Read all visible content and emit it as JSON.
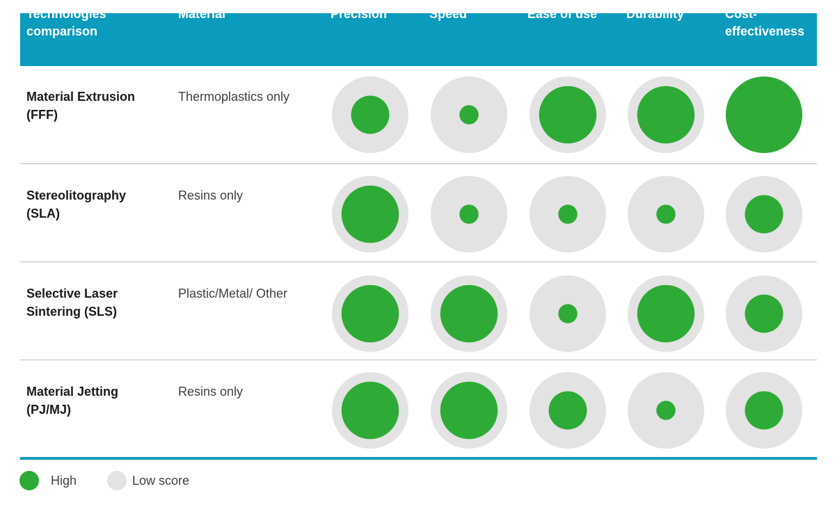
{
  "chart_data": {
    "type": "table",
    "title": "",
    "columns": [
      "Technologies\ncomparison",
      "Material",
      "Precision",
      "Speed",
      "Ease of use",
      "Durability",
      "Cost-\neffectiveness"
    ],
    "metrics": [
      "Precision",
      "Speed",
      "Ease of use",
      "Durability",
      "Cost-effectiveness"
    ],
    "rows": [
      {
        "technology": "Material Extrusion\n(FFF)",
        "material": "Thermoplastics only",
        "scores": [
          0.5,
          0.25,
          0.75,
          0.75,
          1.0
        ]
      },
      {
        "technology": "Stereolitography\n(SLA)",
        "material": "Resins only",
        "scores": [
          0.75,
          0.25,
          0.25,
          0.25,
          0.5
        ]
      },
      {
        "technology": "Selective Laser\nSintering (SLS)",
        "material": "Plastic/Metal/ Other",
        "scores": [
          0.75,
          0.75,
          0.25,
          0.75,
          0.5
        ]
      },
      {
        "technology": "Material Jetting\n(PJ/MJ)",
        "material": "Resins only",
        "scores": [
          0.75,
          0.75,
          0.5,
          0.25,
          0.5
        ]
      }
    ],
    "legend": [
      {
        "label": "High",
        "color": "#2eaa36"
      },
      {
        "label": "Low score",
        "color": "#e3e3e3"
      }
    ],
    "colors": {
      "header": "#0a9bbd",
      "high": "#2eaa36",
      "low": "#e3e3e3"
    }
  }
}
